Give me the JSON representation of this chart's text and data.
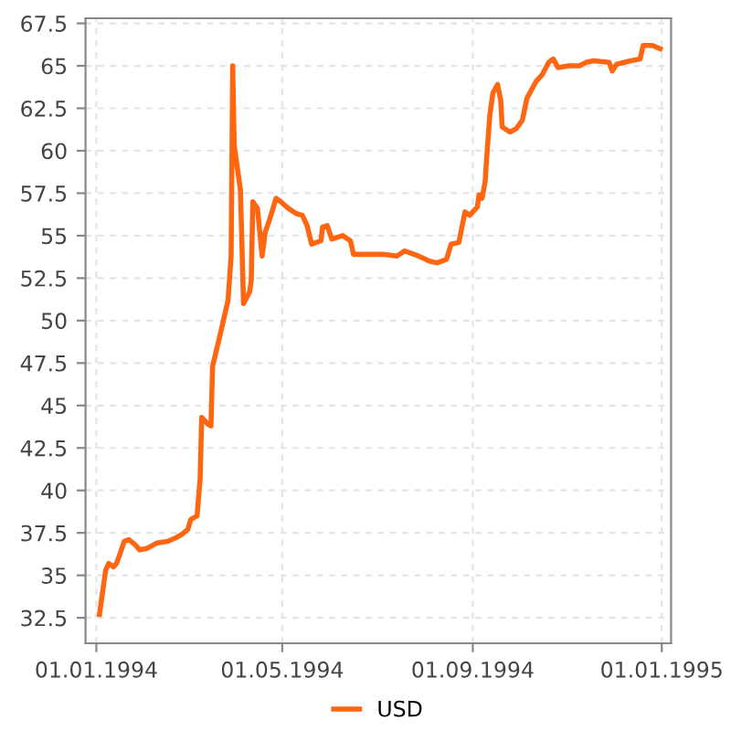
{
  "chart_data": {
    "type": "line",
    "x": [
      "1994-01-03",
      "1994-01-07",
      "1994-01-09",
      "1994-01-12",
      "1994-01-14",
      "1994-01-16",
      "1994-01-19",
      "1994-01-22",
      "1994-01-26",
      "1994-01-29",
      "1994-02-03",
      "1994-02-09",
      "1994-02-16",
      "1994-02-21",
      "1994-02-25",
      "1994-03-01",
      "1994-03-03",
      "1994-03-07",
      "1994-03-09",
      "1994-03-10",
      "1994-03-14",
      "1994-03-16",
      "1994-03-17",
      "1994-03-22",
      "1994-03-27",
      "1994-03-29",
      "1994-03-30",
      "1994-03-31",
      "1994-04-04",
      "1994-04-06",
      "1994-04-10",
      "1994-04-11",
      "1994-04-12",
      "1994-04-15",
      "1994-04-18",
      "1994-04-20",
      "1994-04-23",
      "1994-04-27",
      "1994-04-30",
      "1994-05-05",
      "1994-05-10",
      "1994-05-14",
      "1994-05-17",
      "1994-05-20",
      "1994-05-26",
      "1994-05-27",
      "1994-05-30",
      "1994-06-02",
      "1994-06-09",
      "1994-06-14",
      "1994-06-16",
      "1994-06-23",
      "1994-07-05",
      "1994-07-14",
      "1994-07-19",
      "1994-07-28",
      "1994-08-04",
      "1994-08-09",
      "1994-08-15",
      "1994-08-18",
      "1994-08-23",
      "1994-08-27",
      "1994-08-30",
      "1994-09-04",
      "1994-09-05",
      "1994-09-07",
      "1994-09-09",
      "1994-09-10",
      "1994-09-12",
      "1994-09-14",
      "1994-09-17",
      "1994-09-19",
      "1994-09-20",
      "1994-09-25",
      "1994-09-29",
      "1994-10-03",
      "1994-10-06",
      "1994-10-12",
      "1994-10-16",
      "1994-10-20",
      "1994-10-23",
      "1994-10-26",
      "1994-11-02",
      "1994-11-09",
      "1994-11-13",
      "1994-11-18",
      "1994-11-28",
      "1994-11-30",
      "1994-12-03",
      "1994-12-12",
      "1994-12-18",
      "1994-12-20",
      "1994-12-26",
      "1994-12-31"
    ],
    "series": [
      {
        "name": "USD",
        "color": "#ff6611",
        "values": [
          32.7,
          35.3,
          35.7,
          35.5,
          35.7,
          36.2,
          37.0,
          37.1,
          36.8,
          36.5,
          36.6,
          36.9,
          37.0,
          37.2,
          37.4,
          37.7,
          38.3,
          38.5,
          40.7,
          44.3,
          43.9,
          43.8,
          47.3,
          49.2,
          51.2,
          53.8,
          65.0,
          60.3,
          57.7,
          51.0,
          51.7,
          52.4,
          57.0,
          56.6,
          53.8,
          55.2,
          56.0,
          57.2,
          57.0,
          56.6,
          56.3,
          56.2,
          55.6,
          54.5,
          54.7,
          55.5,
          55.6,
          54.8,
          55.0,
          54.7,
          53.9,
          53.9,
          53.9,
          53.8,
          54.1,
          53.8,
          53.5,
          53.4,
          53.6,
          54.5,
          54.6,
          56.4,
          56.2,
          56.7,
          57.4,
          57.2,
          58.2,
          59.6,
          62.1,
          63.4,
          63.9,
          63.0,
          61.4,
          61.1,
          61.3,
          61.8,
          63.1,
          64.1,
          64.5,
          65.2,
          65.4,
          64.9,
          65.0,
          65.0,
          65.2,
          65.3,
          65.2,
          64.7,
          65.1,
          65.3,
          65.4,
          66.2,
          66.2,
          66.0
        ]
      }
    ],
    "xlim": [
      "1993-12-25",
      "1995-01-07"
    ],
    "xticks": [
      {
        "value": "1994-01-01",
        "label": "01.01.1994"
      },
      {
        "value": "1994-05-01",
        "label": "01.05.1994"
      },
      {
        "value": "1994-09-01",
        "label": "01.09.1994"
      },
      {
        "value": "1995-01-01",
        "label": "01.01.1995"
      }
    ],
    "ylim": [
      31.0,
      67.8
    ],
    "yticks": [
      32.5,
      35,
      37.5,
      40,
      42.5,
      45,
      47.5,
      50,
      52.5,
      55,
      57.5,
      60,
      62.5,
      65,
      67.5
    ],
    "grid": true,
    "legend": "bottom",
    "marker": "none",
    "line_style": "solid"
  }
}
